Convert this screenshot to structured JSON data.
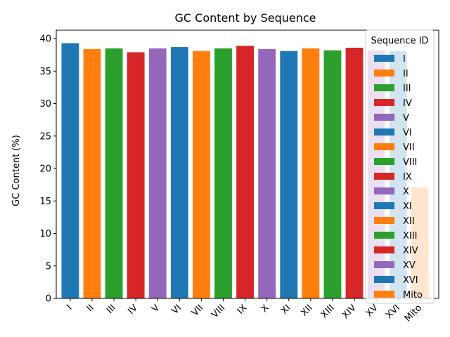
{
  "chart_data": {
    "type": "bar",
    "title": "GC Content by Sequence",
    "xlabel": "",
    "ylabel": "GC Content (%)",
    "ylim": [
      0,
      41.3
    ],
    "yticks": [
      0,
      5,
      10,
      15,
      20,
      25,
      30,
      35,
      40
    ],
    "grid": false,
    "legend": {
      "title": "Sequence ID",
      "placement": "top-right"
    },
    "categories": [
      "I",
      "II",
      "III",
      "IV",
      "V",
      "VI",
      "VII",
      "VIII",
      "IX",
      "X",
      "XI",
      "XII",
      "XIII",
      "XIV",
      "XV",
      "XVI",
      "Mito"
    ],
    "values": [
      39.3,
      38.4,
      38.5,
      37.9,
      38.5,
      38.7,
      38.1,
      38.5,
      38.9,
      38.4,
      38.1,
      38.5,
      38.2,
      38.6,
      38.2,
      38.1,
      17.1
    ],
    "colors": [
      "#1f77b4",
      "#ff7f0e",
      "#2ca02c",
      "#d62728",
      "#9467bd",
      "#1f77b4",
      "#ff7f0e",
      "#2ca02c",
      "#d62728",
      "#9467bd",
      "#1f77b4",
      "#ff7f0e",
      "#2ca02c",
      "#d62728",
      "#9467bd",
      "#1f77b4",
      "#ff7f0e"
    ]
  }
}
